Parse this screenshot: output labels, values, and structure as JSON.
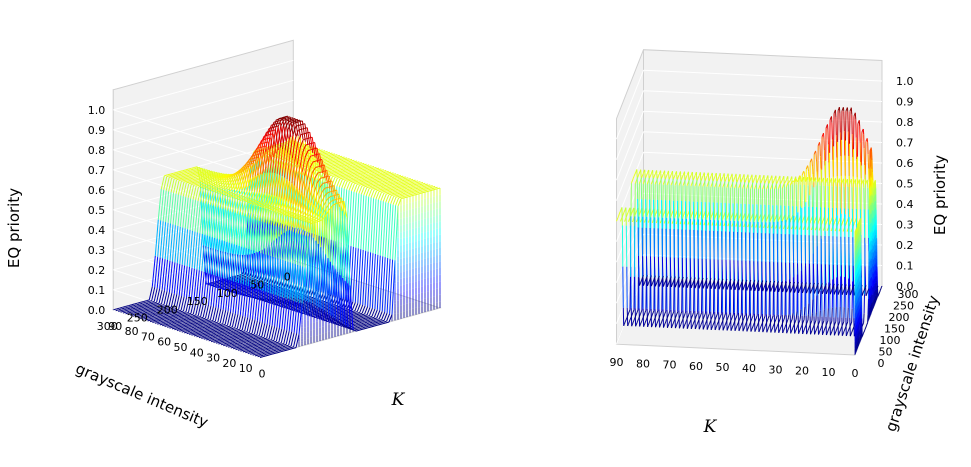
{
  "chart_data": [
    {
      "type": "surface3d",
      "colormap": "jet",
      "view": "elevation 25, azimuth front-left",
      "x": {
        "label": "grayscale intensity",
        "ticks": [
          0,
          50,
          100,
          150,
          200,
          250,
          300
        ],
        "range": [
          0,
          300
        ]
      },
      "y": {
        "label": "K",
        "ticks": [
          90,
          80,
          70,
          60,
          50,
          40,
          30,
          20,
          10,
          0
        ],
        "range": [
          0,
          90
        ]
      },
      "z": {
        "label": "EQ priority",
        "ticks": [
          "0.0",
          "0.1",
          "0.2",
          "0.3",
          "0.4",
          "0.5",
          "0.6",
          "0.7",
          "0.8",
          "0.9",
          "1.0"
        ],
        "range": [
          0,
          1
        ]
      },
      "grid": true,
      "surface": {
        "plateau_level": 0.6,
        "plateau_k_range": [
          0,
          90
        ],
        "plateau_intensity_range": [
          0,
          70
        ],
        "peak_level": 1.0,
        "peak_near_k": 30,
        "peak_near_intensity": 150,
        "valley_intensity_range": [
          80,
          150
        ]
      }
    },
    {
      "type": "surface3d",
      "colormap": "jet",
      "view": "elevation 20, azimuth front",
      "x": {
        "label": "grayscale intensity",
        "ticks": [
          0,
          50,
          100,
          150,
          200,
          250,
          300
        ],
        "range": [
          0,
          300
        ]
      },
      "y": {
        "label": "K",
        "ticks": [
          90,
          80,
          70,
          60,
          50,
          40,
          30,
          20,
          10,
          0
        ],
        "range": [
          0,
          90
        ]
      },
      "z": {
        "label": "EQ priority",
        "ticks": [
          "0.0",
          "0.1",
          "0.2",
          "0.3",
          "0.4",
          "0.5",
          "0.6",
          "0.7",
          "0.8",
          "0.9",
          "1.0"
        ],
        "range": [
          0,
          1
        ]
      },
      "grid": true,
      "surface": {
        "plateau_level": 0.6,
        "peak_level": 1.0,
        "peak_near_k": 10
      }
    }
  ]
}
